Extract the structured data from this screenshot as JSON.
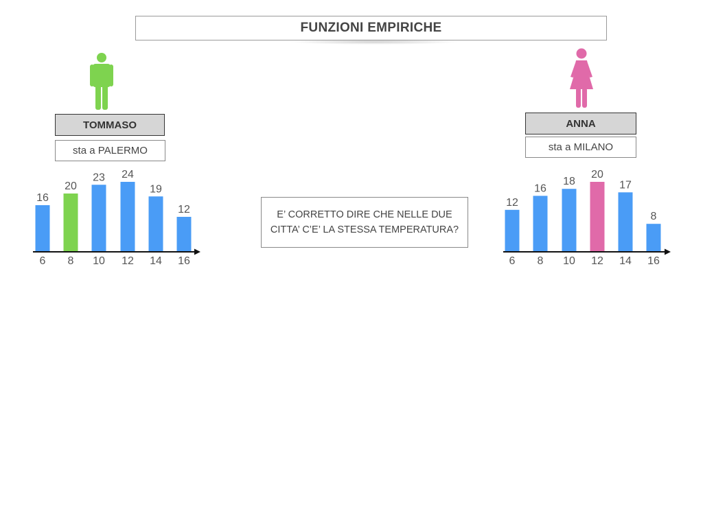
{
  "title": "FUNZIONI EMPIRICHE",
  "people": [
    {
      "name": "TOMMASO",
      "city": "sta a PALERMO",
      "icon": "male-person-icon",
      "color": "#7ed34f"
    },
    {
      "name": "ANNA",
      "city": "sta a MILANO",
      "icon": "female-person-icon",
      "color": "#e06aa9"
    }
  ],
  "question": "E’ CORRETTO DIRE CHE NELLE DUE CITTA’ C’E’ LA STESSA TEMPERATURA?",
  "chart_data": [
    {
      "type": "bar",
      "categories": [
        "6",
        "8",
        "10",
        "12",
        "14",
        "16"
      ],
      "values": [
        16,
        20,
        23,
        24,
        19,
        12
      ],
      "highlight_index": 1,
      "bar_color": "#4a9cf6",
      "highlight_color": "#7ed34f",
      "ylim": [
        0,
        24
      ],
      "grid": false
    },
    {
      "type": "bar",
      "categories": [
        "6",
        "8",
        "10",
        "12",
        "14",
        "16"
      ],
      "values": [
        12,
        16,
        18,
        20,
        17,
        8
      ],
      "highlight_index": 3,
      "bar_color": "#4a9cf6",
      "highlight_color": "#e06aa9",
      "ylim": [
        0,
        20
      ],
      "grid": false
    }
  ]
}
